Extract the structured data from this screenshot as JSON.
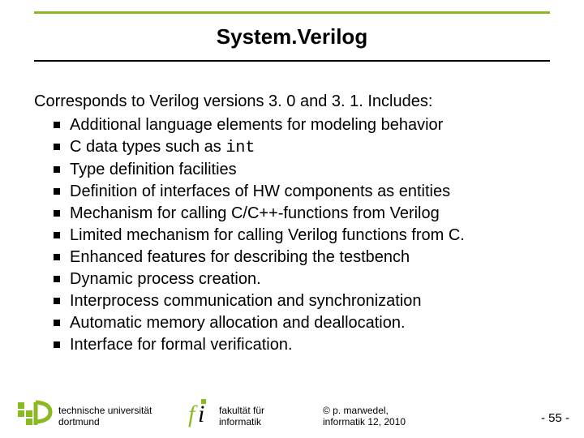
{
  "colors": {
    "accent": "#8bb921",
    "rule": "#000000",
    "text": "#000000",
    "background": "#ffffff"
  },
  "title": "System.Verilog",
  "intro": "Corresponds to Verilog versions 3. 0 and 3. 1. Includes:",
  "bullets": [
    {
      "pre": "Additional language elements for modeling behavior",
      "mono": "",
      "post": ""
    },
    {
      "pre": "C data types such as ",
      "mono": "int",
      "post": ""
    },
    {
      "pre": "Type definition facilities",
      "mono": "",
      "post": ""
    },
    {
      "pre": "Definition of interfaces of HW components as entities",
      "mono": "",
      "post": ""
    },
    {
      "pre": "Mechanism for calling C/C++-functions from Verilog",
      "mono": "",
      "post": ""
    },
    {
      "pre": "Limited mechanism for calling Verilog functions from C.",
      "mono": "",
      "post": ""
    },
    {
      "pre": "Enhanced features for describing the testbench",
      "mono": "",
      "post": ""
    },
    {
      "pre": "Dynamic process creation.",
      "mono": "",
      "post": ""
    },
    {
      "pre": "Interprocess communication and synchronization",
      "mono": "",
      "post": ""
    },
    {
      "pre": "Automatic memory allocation and deallocation.",
      "mono": "",
      "post": ""
    },
    {
      "pre": "Interface for formal verification.",
      "mono": "",
      "post": ""
    }
  ],
  "footer": {
    "tu_line1": "technische universität",
    "tu_line2": "dortmund",
    "fi_line1": "fakultät für",
    "fi_line2": "informatik",
    "copy_line1": "©  p. marwedel,",
    "copy_line2": "informatik 12,  2010",
    "page_prefix": "-  ",
    "page_number": "55",
    "page_suffix": " -"
  }
}
